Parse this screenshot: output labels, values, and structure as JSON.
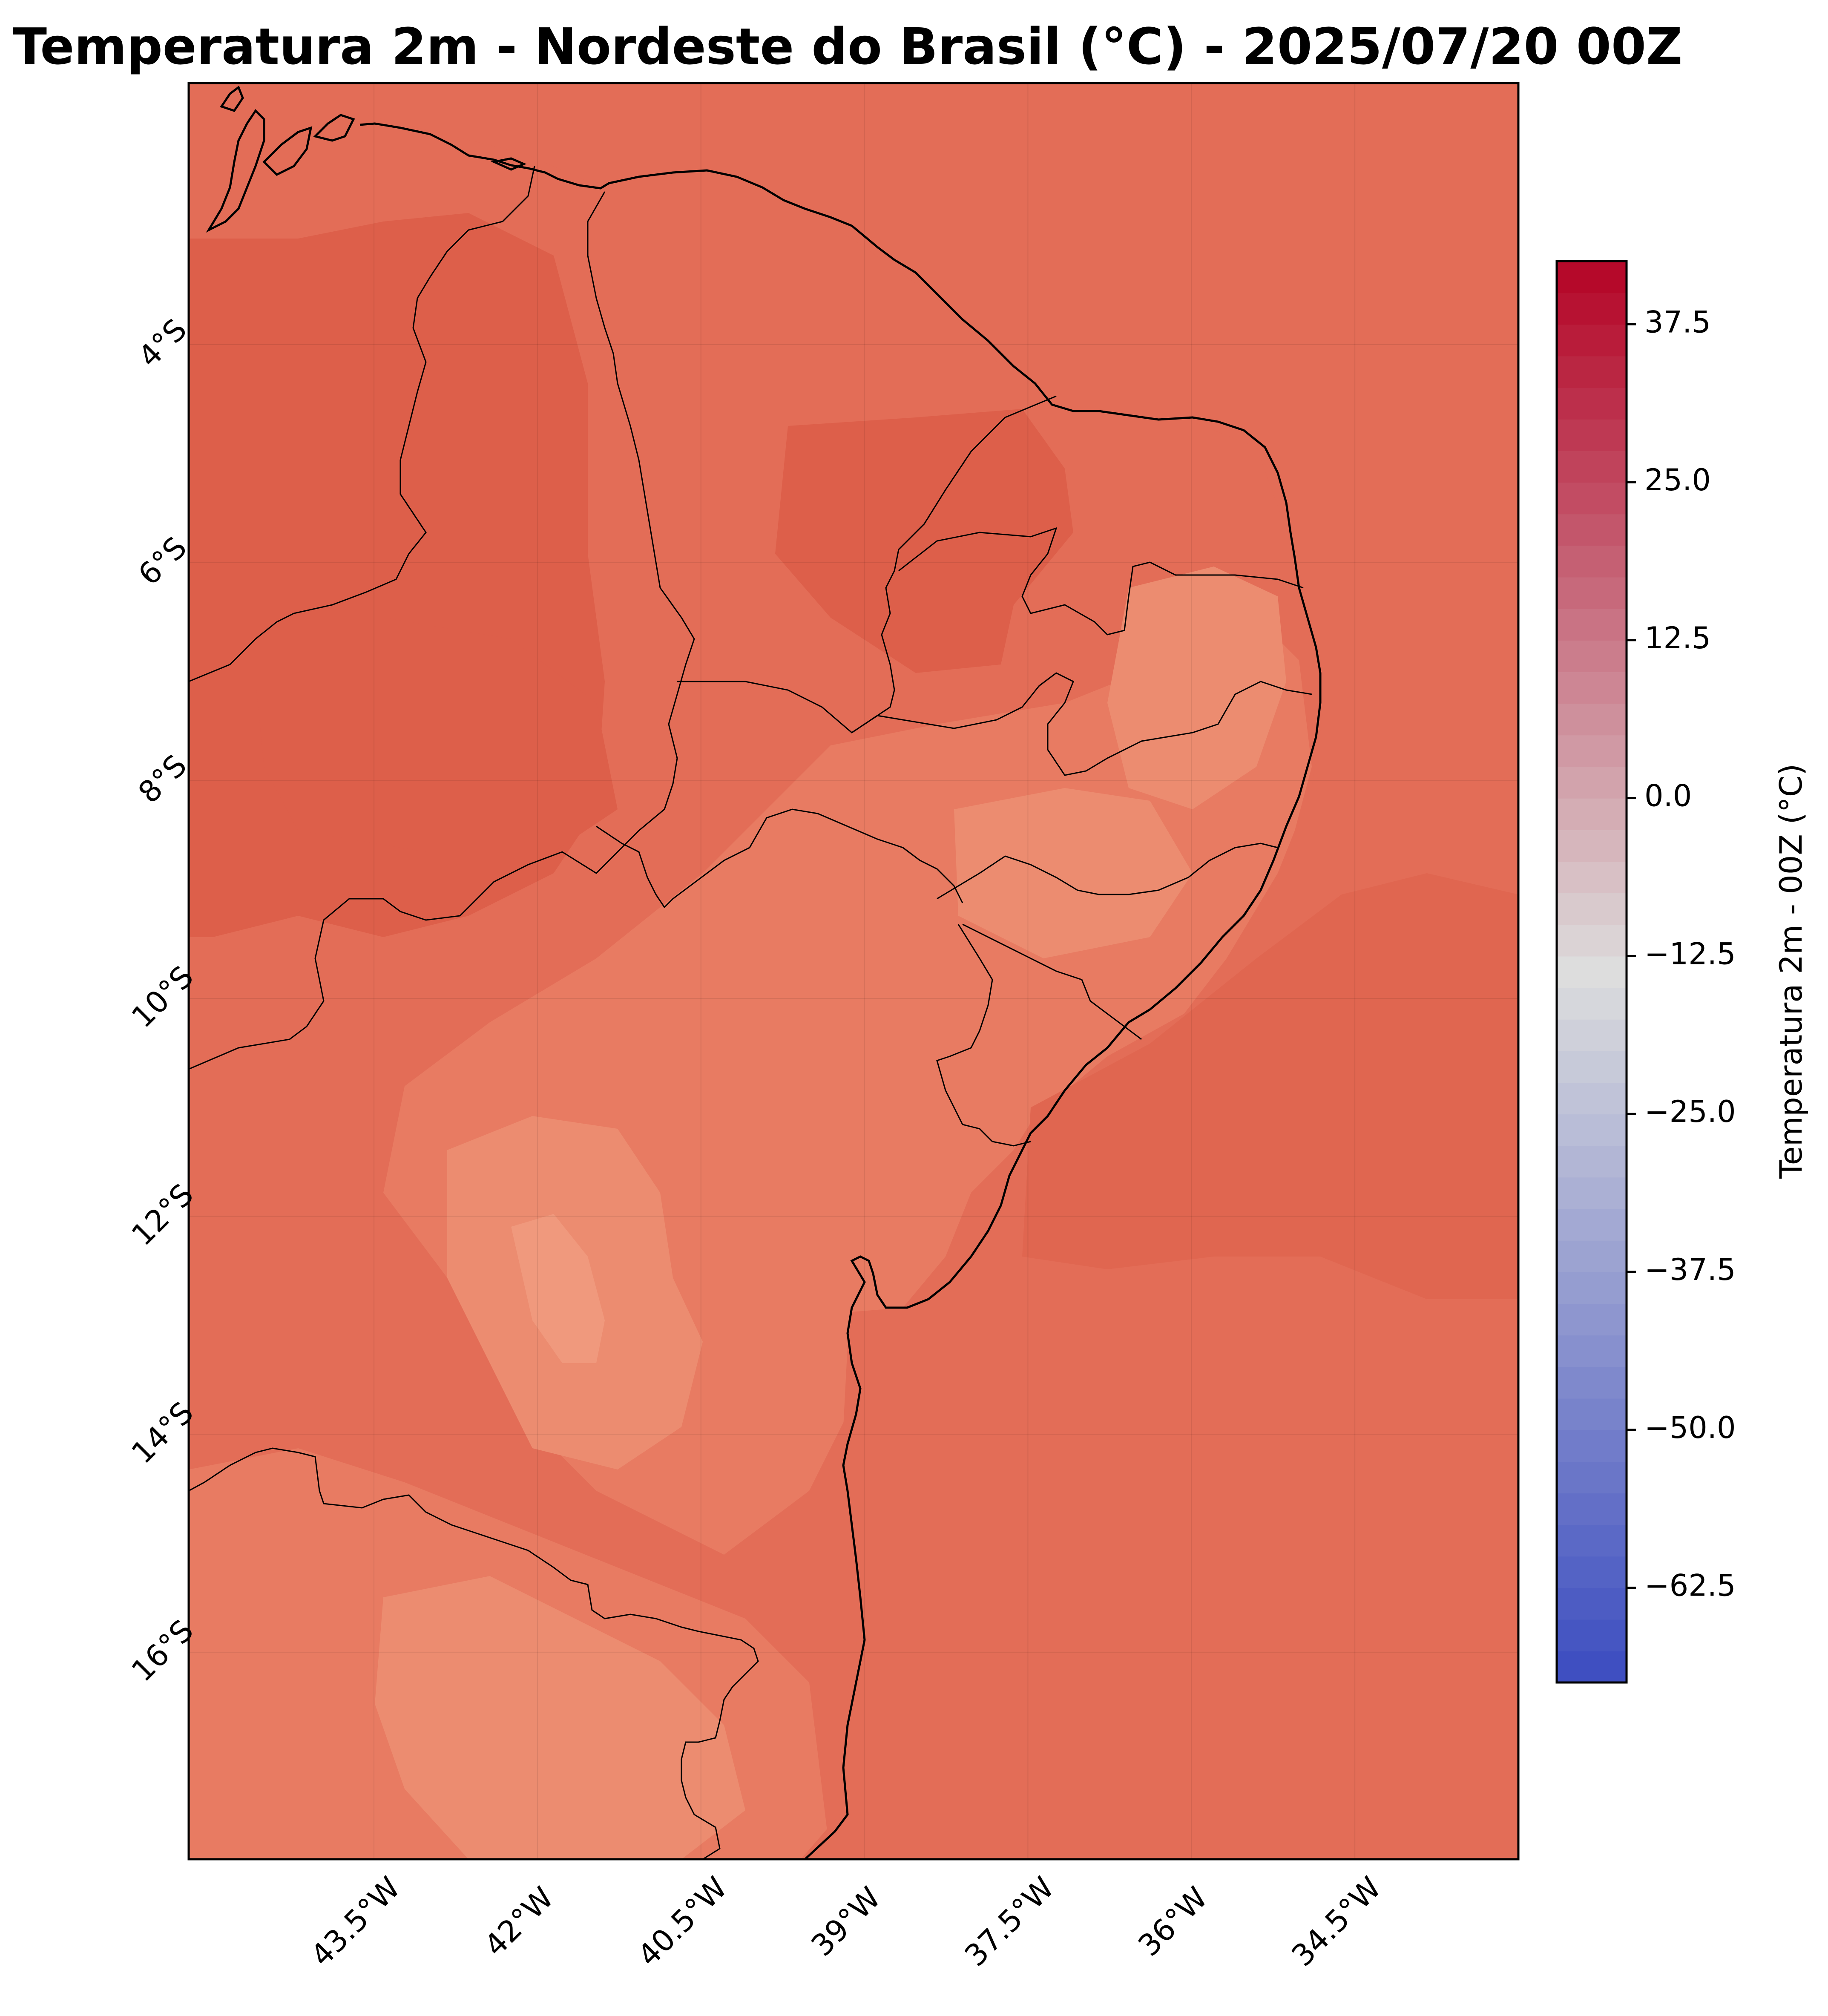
{
  "title": "Temperatura 2m - Nordeste do Brasil (°C) - 2025/07/20 00Z",
  "map": {
    "lat_labels": [
      "4°S",
      "6°S",
      "8°S",
      "10°S",
      "12°S",
      "14°S",
      "16°S"
    ],
    "lon_labels": [
      "43.5°W",
      "42°W",
      "40.5°W",
      "39°W",
      "37.5°W",
      "36°W",
      "34.5°W"
    ],
    "lat_values": [
      -4,
      -6,
      -8,
      -10,
      -12,
      -14,
      -16
    ],
    "lon_values": [
      -43.5,
      -42,
      -40.5,
      -39,
      -37.5,
      -36,
      -34.5
    ],
    "extent": {
      "lon_min": -45.2,
      "lon_max": -33.0,
      "lat_min": -17.9,
      "lat_max": -1.6
    }
  },
  "colorbar": {
    "label": "Temperatura 2m - 00Z (°C)",
    "tick_labels": [
      "37.5",
      "25.0",
      "12.5",
      "0.0",
      "−12.5",
      "−25.0",
      "−37.5",
      "−50.0",
      "−62.5"
    ],
    "tick_values": [
      37.5,
      25,
      12.5,
      0,
      -12.5,
      -25,
      -37.5,
      -50,
      -62.5
    ],
    "vmin": -70,
    "vmax": 42.5,
    "colormap": "coolwarm",
    "colors": {
      "min": "#3b4cc0",
      "mid": "#dddddd",
      "max": "#b40426"
    }
  },
  "field_colors": {
    "ocean": "#e36d57",
    "inland_warm": "#dd5f4a",
    "mid": "#e87b62",
    "cool": "#ec8c70",
    "coolest": "#f0997d"
  }
}
